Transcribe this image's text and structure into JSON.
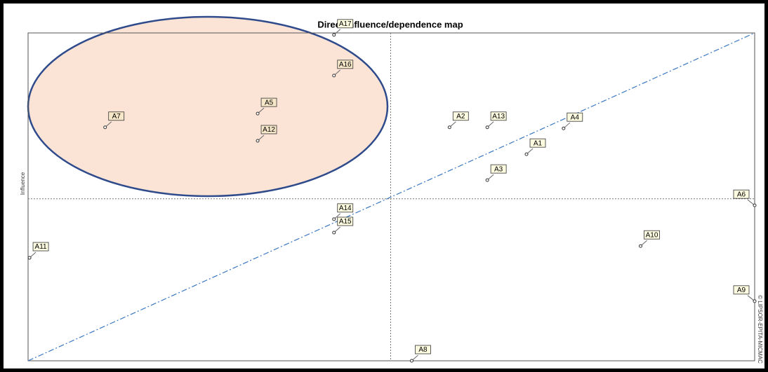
{
  "chart_data": {
    "type": "scatter",
    "title": "Direct influence/dependence map",
    "y_label": "Influence",
    "watermark": "© LIPSOR-EPITA-MICMAC",
    "xlim": [
      0,
      100
    ],
    "ylim": [
      0,
      100
    ],
    "reference_lines": {
      "x": 49.9,
      "y": 49.4
    },
    "color": "#333333",
    "series": [
      {
        "name": "Variables",
        "labels": [
          "A1",
          "A2",
          "A3",
          "A4",
          "A5",
          "A6",
          "A7",
          "A8",
          "A9",
          "A10",
          "A11",
          "A12",
          "A13",
          "A14",
          "A15",
          "A16",
          "A17"
        ],
        "x": [
          68.6,
          58.0,
          63.2,
          73.7,
          31.6,
          100,
          10.6,
          52.8,
          100,
          84.3,
          0.2,
          31.6,
          63.2,
          42.1,
          42.1,
          42.1,
          42.1
        ],
        "values": [
          63.0,
          71.2,
          55.1,
          70.9,
          75.4,
          47.4,
          71.2,
          0,
          18.2,
          35.0,
          31.4,
          67.1,
          71.2,
          43.2,
          39.1,
          87.0,
          99.4
        ]
      }
    ]
  }
}
